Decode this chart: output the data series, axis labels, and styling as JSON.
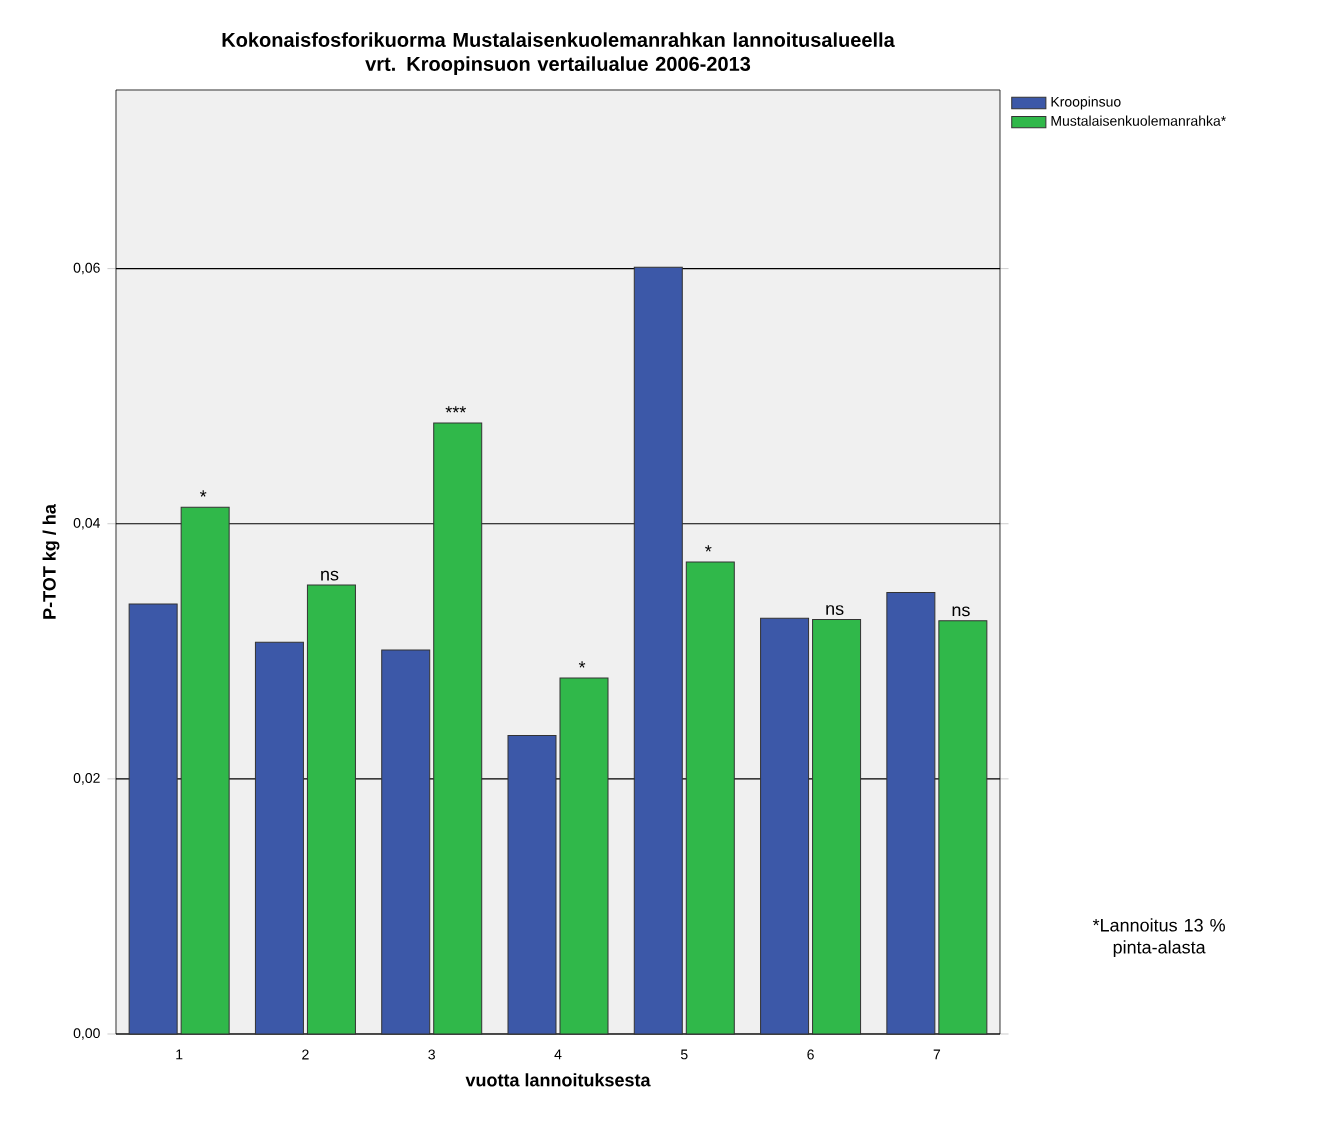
{
  "chart_data": {
    "type": "bar",
    "title": "Kokonaisfosforikuorma Mustalaisenkuolemanrahkan lannoitusalueella\nvrt. Kroopinsuon vertailualue 2006-2013",
    "xlabel": "vuotta lannoituksesta",
    "ylabel": "P-TOT kg / ha",
    "categories": [
      "1",
      "2",
      "3",
      "4",
      "5",
      "6",
      "7"
    ],
    "series": [
      {
        "name": "Kroopinsuo",
        "color": "#3c58a8",
        "values": [
          0.0337,
          0.0307,
          0.0301,
          0.0234,
          0.0601,
          0.0326,
          0.0346
        ]
      },
      {
        "name": "Mustalaisenkuolemanrahka*",
        "color": "#30b84a",
        "values": [
          0.0413,
          0.0352,
          0.0479,
          0.0279,
          0.037,
          0.0325,
          0.0324
        ]
      }
    ],
    "ylim": [
      0,
      0.074
    ],
    "yticks": [
      {
        "value": 0,
        "label": "0,00"
      },
      {
        "value": 0.02,
        "label": "0,02"
      },
      {
        "value": 0.04,
        "label": "0,04"
      },
      {
        "value": 0.06,
        "label": "0,06"
      }
    ],
    "grid": "y",
    "legend": "top right",
    "annotations": [
      {
        "text": "*",
        "x": "1",
        "y": 0.0413
      },
      {
        "text": "ns",
        "x": "2",
        "y": 0.0352
      },
      {
        "text": "***",
        "x": "3",
        "y": 0.0479
      },
      {
        "text": "*",
        "x": "4",
        "y": 0.0279
      },
      {
        "text": "*",
        "x": "5",
        "y": 0.037
      },
      {
        "text": "ns",
        "x": "6",
        "y": 0.0325
      },
      {
        "text": "ns",
        "x": "7",
        "y": 0.0324
      },
      "*Lannoitus 13 %\npinta-alasta"
    ]
  }
}
